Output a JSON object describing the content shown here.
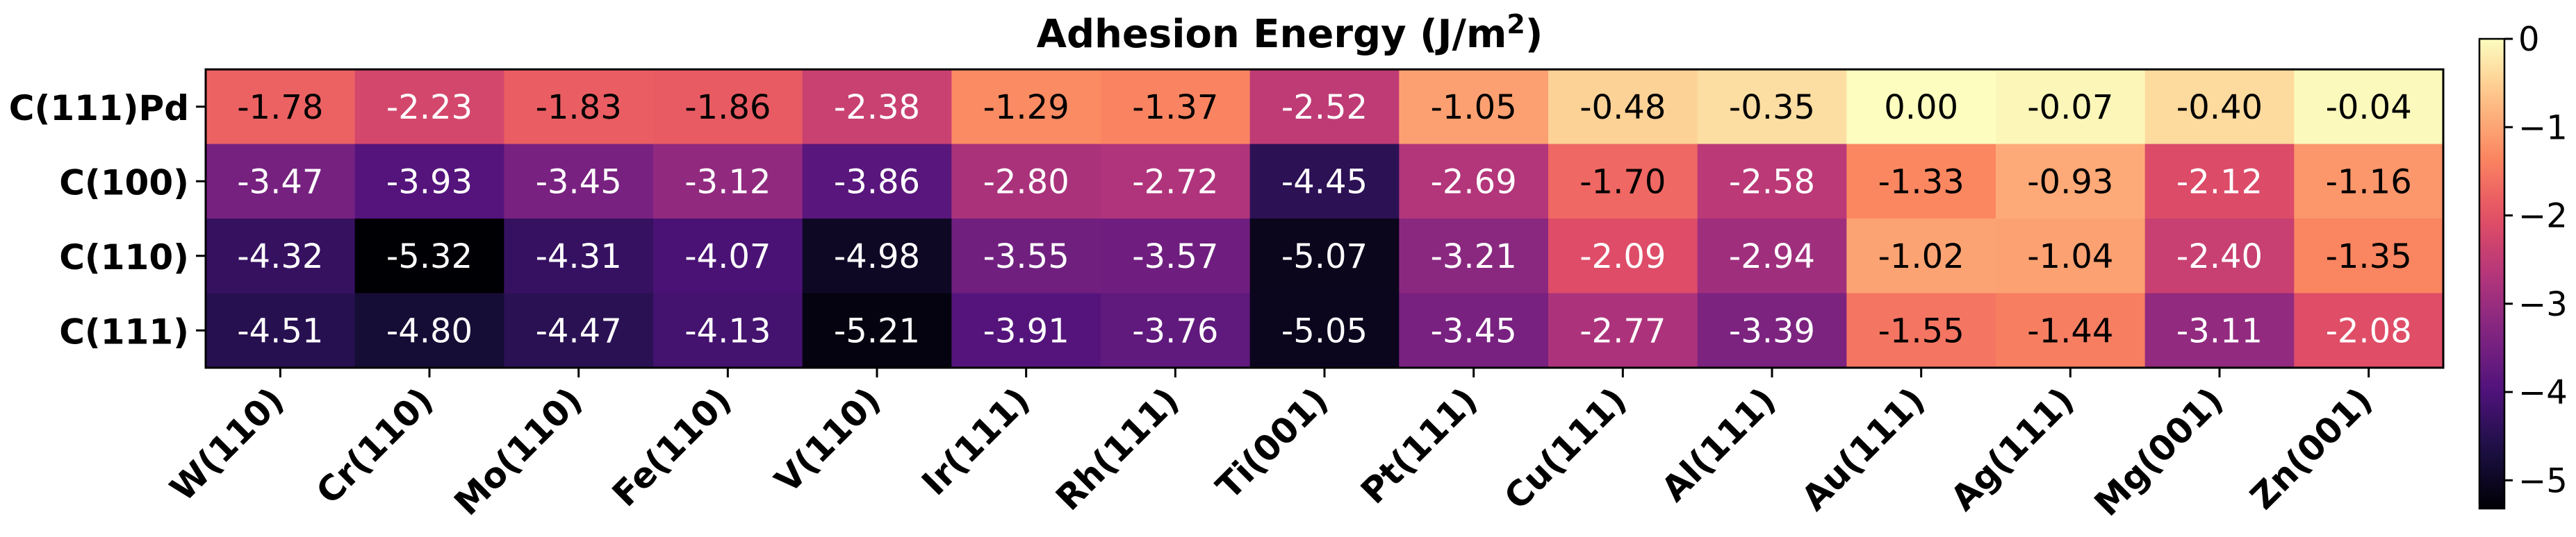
{
  "chart_data": {
    "type": "heatmap",
    "title_main": "Adhesion Energy (J/m",
    "title_sup": "2",
    "title_end": ")",
    "rows": [
      "C(111)Pd",
      "C(100)",
      "C(110)",
      "C(111)"
    ],
    "columns": [
      "W(110)",
      "Cr(110)",
      "Mo(110)",
      "Fe(110)",
      "V(110)",
      "Ir(111)",
      "Rh(111)",
      "Ti(001)",
      "Pt(111)",
      "Cu(111)",
      "Al(111)",
      "Au(111)",
      "Ag(111)",
      "Mg(001)",
      "Zn(001)"
    ],
    "values": [
      [
        -1.78,
        -2.23,
        -1.83,
        -1.86,
        -2.38,
        -1.29,
        -1.37,
        -2.52,
        -1.05,
        -0.48,
        -0.35,
        0.0,
        -0.07,
        -0.4,
        -0.04
      ],
      [
        -3.47,
        -3.93,
        -3.45,
        -3.12,
        -3.86,
        -2.8,
        -2.72,
        -4.45,
        -2.69,
        -1.7,
        -2.58,
        -1.33,
        -0.93,
        -2.12,
        -1.16
      ],
      [
        -4.32,
        -5.32,
        -4.31,
        -4.07,
        -4.98,
        -3.55,
        -3.57,
        -5.07,
        -3.21,
        -2.09,
        -2.94,
        -1.02,
        -1.04,
        -2.4,
        -1.35
      ],
      [
        -4.51,
        -4.8,
        -4.47,
        -4.13,
        -5.21,
        -3.91,
        -3.76,
        -5.05,
        -3.45,
        -2.77,
        -3.39,
        -1.55,
        -1.44,
        -3.11,
        -2.08
      ]
    ],
    "value_format_decimals": 2,
    "colormap": "magma",
    "vmin": -5.32,
    "vmax": 0.0,
    "colorbar_ticks": [
      0,
      -1,
      -2,
      -3,
      -4,
      -5
    ],
    "colorbar_tick_labels": [
      "0",
      "−1",
      "−2",
      "−3",
      "−4",
      "−5"
    ]
  }
}
